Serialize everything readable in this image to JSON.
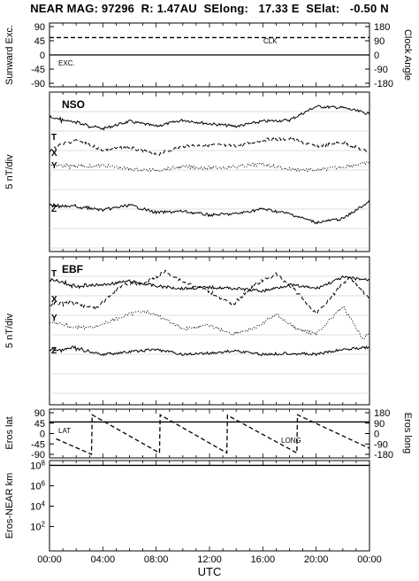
{
  "header": {
    "title": "NEAR MAG: 97296  R: 1.47AU  SElong:   17.33 E  SElat:   -0.50 N"
  },
  "xaxis": {
    "label": "UTC",
    "ticks": [
      "00:00",
      "04:00",
      "08:00",
      "12:00",
      "16:00",
      "20:00",
      "00:00"
    ]
  },
  "chart_data": [
    {
      "type": "line",
      "panel": "sunward-clock",
      "ylabel_left": "Sunward Exc.",
      "ylabel_right": "Clock Angle",
      "yticks_left": [
        "90",
        "45",
        "0",
        "-45",
        "-90"
      ],
      "yticks_right": [
        "180",
        "90",
        "0",
        "-90",
        "-180"
      ],
      "ylim": [
        -90,
        90
      ],
      "series": [
        {
          "name": "CLK",
          "style": "dashed",
          "x": [
            0,
            24
          ],
          "y": [
            55,
            55
          ]
        },
        {
          "name": "EXC.",
          "style": "solid",
          "x": [
            0,
            24
          ],
          "y": [
            0,
            0
          ]
        }
      ]
    },
    {
      "type": "line",
      "panel": "NSO",
      "panel_label": "NSO",
      "ylabel": "5 nT/div",
      "trace_labels": [
        "T",
        "X",
        "Y",
        "Z"
      ],
      "series": [
        {
          "name": "T",
          "style": "solid",
          "x": [
            0,
            2,
            4,
            6,
            8,
            10,
            12,
            14,
            16,
            18,
            20,
            22,
            24
          ],
          "y": [
            1.3,
            0.9,
            0.4,
            1.0,
            0.6,
            1.1,
            0.8,
            0.6,
            1.0,
            1.1,
            2.2,
            2.1,
            1.6
          ]
        },
        {
          "name": "X",
          "style": "dashed",
          "x": [
            0,
            2,
            4,
            6,
            8,
            10,
            12,
            14,
            16,
            18,
            20,
            22,
            24
          ],
          "y": [
            0.2,
            1.0,
            0.2,
            0.4,
            -0.2,
            0.5,
            0.6,
            0.5,
            1.0,
            1.1,
            0.5,
            0.8,
            0.0
          ]
        },
        {
          "name": "Y",
          "style": "dotted",
          "x": [
            0,
            2,
            4,
            6,
            8,
            10,
            12,
            14,
            16,
            18,
            20,
            22,
            24
          ],
          "y": [
            -0.1,
            -0.3,
            -0.2,
            -0.5,
            -0.6,
            -0.3,
            -0.4,
            -0.3,
            -0.1,
            -0.5,
            -0.6,
            -0.3,
            0.0
          ]
        },
        {
          "name": "Z",
          "style": "solid",
          "x": [
            0,
            2,
            4,
            6,
            8,
            10,
            12,
            14,
            16,
            18,
            20,
            22,
            24
          ],
          "y": [
            0.1,
            0.0,
            -0.3,
            0.1,
            -0.5,
            -0.4,
            -0.7,
            -0.6,
            -0.2,
            -0.6,
            -1.3,
            -1.0,
            0.4
          ]
        }
      ]
    },
    {
      "type": "line",
      "panel": "EBF",
      "panel_label": "EBF",
      "ylabel": "5 nT/div",
      "trace_labels": [
        "T",
        "X",
        "Y",
        "Z"
      ],
      "series": [
        {
          "name": "T",
          "style": "solid",
          "x": [
            0,
            2,
            4,
            6,
            8,
            10,
            12,
            14,
            16,
            18,
            20,
            22,
            24
          ],
          "y": [
            0.0,
            -0.5,
            -0.4,
            -0.1,
            -0.5,
            -0.7,
            -0.6,
            -0.7,
            -0.9,
            -0.4,
            -0.7,
            0.2,
            0.0
          ]
        },
        {
          "name": "X",
          "style": "dashed",
          "x": [
            0,
            2,
            3.5,
            5.5,
            7,
            8.7,
            10,
            12,
            13.7,
            15.5,
            17,
            18.5,
            20,
            22.5,
            24
          ],
          "y": [
            0.0,
            0.0,
            -0.4,
            1.6,
            1.6,
            2.6,
            1.8,
            1.0,
            -0.1,
            1.6,
            2.4,
            1.0,
            -0.8,
            2.2,
            0.4
          ]
        },
        {
          "name": "Y",
          "style": "dotted",
          "x": [
            0,
            2,
            3.5,
            5.5,
            7,
            8.7,
            10,
            12,
            13.7,
            15.5,
            17,
            18.5,
            20,
            22,
            23.5,
            24
          ],
          "y": [
            0.0,
            -0.5,
            -0.4,
            0.4,
            0.9,
            0.2,
            -0.6,
            -0.3,
            -1.0,
            -0.5,
            0.6,
            -0.6,
            -1.0,
            1.2,
            -1.4,
            -0.8
          ]
        },
        {
          "name": "Z",
          "style": "solid",
          "x": [
            0,
            2,
            4,
            6,
            8,
            10,
            12,
            14,
            16,
            18,
            20,
            22,
            24
          ],
          "y": [
            0.0,
            0.2,
            -0.3,
            -0.1,
            0.1,
            -0.3,
            -0.2,
            0.0,
            -0.3,
            -0.2,
            -0.3,
            0.1,
            0.3
          ]
        }
      ]
    },
    {
      "type": "line",
      "panel": "eros-lat-long",
      "ylabel_left": "Eros lat",
      "ylabel_right": "Eros long",
      "yticks_left": [
        "90",
        "45",
        "0",
        "-45",
        "-90"
      ],
      "yticks_right": [
        "180",
        "90",
        "0",
        "-90",
        "-180"
      ],
      "ylim": [
        -90,
        90
      ],
      "series": [
        {
          "name": "LAT",
          "style": "solid",
          "x": [
            0,
            24
          ],
          "y": [
            50,
            50
          ]
        },
        {
          "name": "LONG",
          "style": "dashed",
          "x": [
            0.5,
            3.15,
            3.2,
            8.25,
            8.3,
            13.3,
            13.35,
            18.55,
            18.6,
            24
          ],
          "y": [
            -23,
            -90,
            81,
            -84,
            81,
            -84,
            79,
            -84,
            81,
            -64
          ]
        }
      ]
    },
    {
      "type": "line",
      "panel": "eros-near-distance",
      "ylabel": "Eros-NEAR km",
      "yscale": "log",
      "yticks": [
        "10^8",
        "10^6",
        "10^4",
        "10^2"
      ],
      "series": [
        {
          "name": "distance",
          "style": "solid",
          "x": [
            0,
            24
          ],
          "y": [
            100000000,
            100000000
          ]
        }
      ]
    }
  ]
}
